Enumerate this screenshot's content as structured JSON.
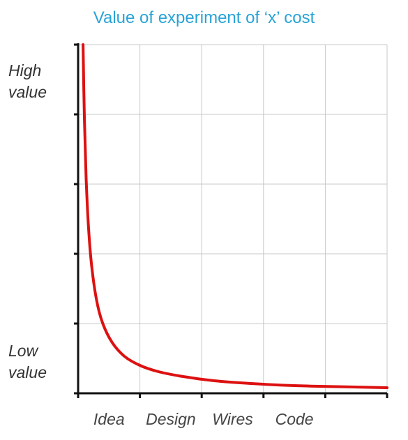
{
  "chart_data": {
    "type": "line",
    "title": "Value of experiment of ‘x’ cost",
    "y_axis_labels": {
      "high": "High\nvalue",
      "low": "Low\nvalue"
    },
    "x_tick_labels": [
      "Idea",
      "Design",
      "Wires",
      "Code"
    ],
    "x_tick_positions": [
      0.5,
      1.5,
      2.5,
      3.5
    ],
    "xlim": [
      0,
      5
    ],
    "ylim": [
      0,
      5
    ],
    "grid": true,
    "series": [
      {
        "color": "#dd1111",
        "x": [
          0.08,
          0.1,
          0.13,
          0.17,
          0.22,
          0.3,
          0.4,
          0.55,
          0.75,
          1.0,
          1.3,
          1.7,
          2.2,
          2.8,
          3.5,
          4.2,
          5.0
        ],
        "y": [
          5.0,
          4.0,
          3.08,
          2.35,
          1.82,
          1.33,
          1.0,
          0.73,
          0.53,
          0.4,
          0.31,
          0.24,
          0.18,
          0.14,
          0.11,
          0.095,
          0.08
        ]
      }
    ]
  }
}
